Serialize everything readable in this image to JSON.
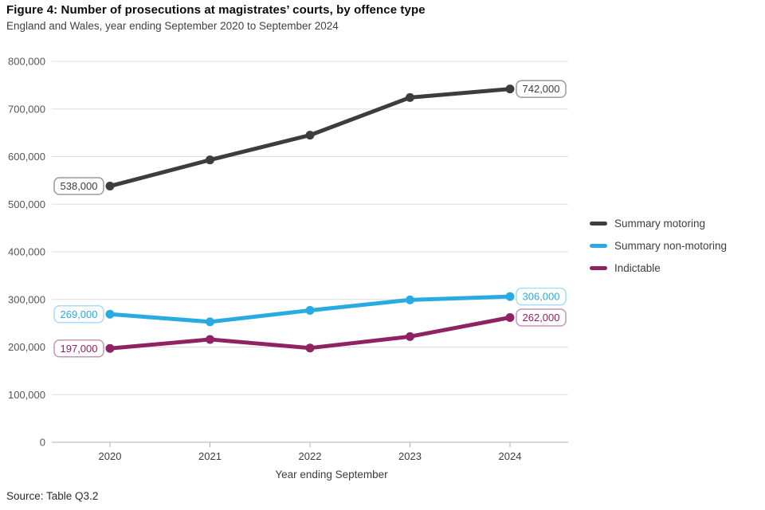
{
  "header": {
    "title": "Figure 4: Number of prosecutions at magistrates’ courts, by offence type",
    "subtitle": "England and Wales, year ending September 2020 to September 2024"
  },
  "source": "Source: Table Q3.2",
  "colors": {
    "grid_line": "#dedede",
    "axis_line": "#b0b0b0",
    "y_tick_text": "#565656",
    "x_tick_text": "#3d3d3d",
    "axis_title_text": "#3d3d3d",
    "label_box_fill": "#ffffff"
  },
  "chart_data": {
    "type": "line",
    "title": "Number of prosecutions at magistrates’ courts, by offence type",
    "xlabel": "Year ending September",
    "ylabel": "",
    "x_tick_labels": [
      "2020",
      "2021",
      "2022",
      "2023",
      "2024"
    ],
    "y_ticks": [
      0,
      100000,
      200000,
      300000,
      400000,
      500000,
      600000,
      700000,
      800000
    ],
    "y_tick_labels": [
      "0",
      "100,000",
      "200,000",
      "300,000",
      "400,000",
      "500,000",
      "600,000",
      "700,000",
      "800,000"
    ],
    "ylim": [
      0,
      800000
    ],
    "grid": "horizontal",
    "legend_position": "right",
    "series": [
      {
        "name": "Summary motoring",
        "color": "#3d3d3d",
        "label_border": "#9a9a9a",
        "values": [
          538000,
          593000,
          645000,
          724000,
          742000
        ],
        "value_labels": {
          "start": "538,000",
          "end": "742,000"
        }
      },
      {
        "name": "Summary non-motoring",
        "color": "#29abe2",
        "label_border": "#a7ddf2",
        "values": [
          269000,
          253000,
          277000,
          299000,
          306000
        ],
        "value_labels": {
          "start": "269,000",
          "end": "306,000"
        }
      },
      {
        "name": "Indictable",
        "color": "#8e2262",
        "label_border": "#c795b3",
        "values": [
          197000,
          216000,
          198000,
          222000,
          262000
        ],
        "value_labels": {
          "start": "197,000",
          "end": "262,000"
        }
      }
    ]
  }
}
